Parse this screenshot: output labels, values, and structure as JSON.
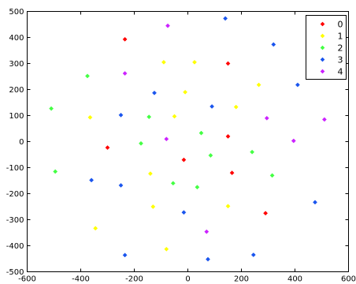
{
  "chart_data": {
    "type": "scatter",
    "title": "",
    "xlabel": "",
    "ylabel": "",
    "xlim": [
      -600,
      600
    ],
    "ylim": [
      -500,
      500
    ],
    "x_ticks": [
      "-600",
      "-400",
      "-200",
      "0",
      "200",
      "400",
      "600"
    ],
    "y_ticks": [
      "-500",
      "-400",
      "-300",
      "-200",
      "-100",
      "0",
      "100",
      "200",
      "300",
      "400",
      "500"
    ],
    "grid": false,
    "legend_position": "top-right",
    "series": [
      {
        "name": "0",
        "color": "#ff0000",
        "points": [
          [
            -235,
            393
          ],
          [
            150,
            300
          ],
          [
            -300,
            -23
          ],
          [
            150,
            20
          ],
          [
            -15,
            -70
          ],
          [
            165,
            -120
          ],
          [
            290,
            -275
          ]
        ]
      },
      {
        "name": "1",
        "color": "#ffff00",
        "points": [
          [
            -90,
            305
          ],
          [
            25,
            305
          ],
          [
            265,
            218
          ],
          [
            -10,
            190
          ],
          [
            180,
            133
          ],
          [
            -365,
            93
          ],
          [
            -50,
            97
          ],
          [
            -140,
            -123
          ],
          [
            -130,
            -250
          ],
          [
            150,
            -248
          ],
          [
            -345,
            -333
          ],
          [
            -80,
            -413
          ]
        ]
      },
      {
        "name": "2",
        "color": "#44ff44",
        "points": [
          [
            -375,
            252
          ],
          [
            -510,
            127
          ],
          [
            -145,
            95
          ],
          [
            50,
            33
          ],
          [
            -175,
            -7
          ],
          [
            85,
            -53
          ],
          [
            240,
            -40
          ],
          [
            -495,
            -115
          ],
          [
            315,
            -130
          ],
          [
            -55,
            -160
          ],
          [
            35,
            -175
          ]
        ]
      },
      {
        "name": "3",
        "color": "#1a55ee",
        "points": [
          [
            140,
            473
          ],
          [
            320,
            373
          ],
          [
            -125,
            187
          ],
          [
            410,
            218
          ],
          [
            90,
            135
          ],
          [
            -250,
            102
          ],
          [
            -360,
            -148
          ],
          [
            -250,
            -168
          ],
          [
            -15,
            -272
          ],
          [
            475,
            -233
          ],
          [
            -235,
            -436
          ],
          [
            75,
            -452
          ],
          [
            245,
            -435
          ]
        ]
      },
      {
        "name": "4",
        "color": "#cc22ff",
        "points": [
          [
            -75,
            445
          ],
          [
            -235,
            262
          ],
          [
            295,
            90
          ],
          [
            510,
            85
          ],
          [
            -80,
            10
          ],
          [
            395,
            3
          ],
          [
            70,
            -346
          ]
        ]
      }
    ]
  }
}
